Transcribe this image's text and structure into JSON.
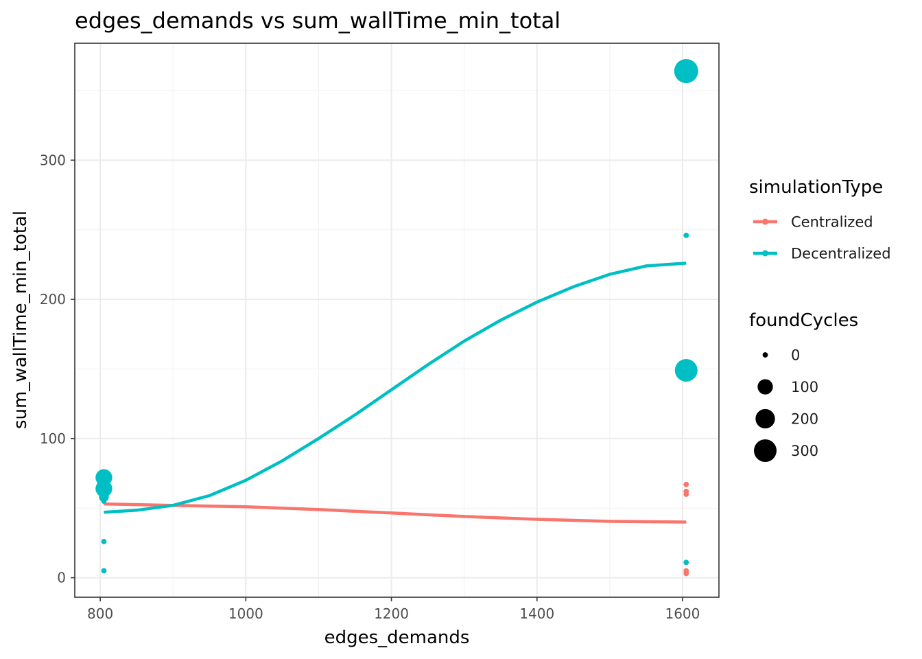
{
  "chart_data": {
    "type": "scatter",
    "title": "edges_demands  vs  sum_wallTime_min_total",
    "xlabel": "edges_demands",
    "ylabel": "sum_wallTime_min_total",
    "xlim": [
      765,
      1650
    ],
    "ylim": [
      -14,
      384
    ],
    "xticks": [
      800,
      1000,
      1200,
      1400,
      1600
    ],
    "xtick_labels": [
      "800",
      "1000",
      "1200",
      "1400",
      "1600"
    ],
    "yticks": [
      0,
      100,
      200,
      300
    ],
    "ytick_labels": [
      "0",
      "100",
      "200",
      "300"
    ],
    "grid": true,
    "legend_placement": "right",
    "series": [
      {
        "name": "Centralized",
        "color": "#F8766D",
        "points": [
          {
            "x": 805,
            "y": 60,
            "size": 0
          },
          {
            "x": 1605,
            "y": 67,
            "size": 0
          },
          {
            "x": 1605,
            "y": 62,
            "size": 0
          },
          {
            "x": 1605,
            "y": 60,
            "size": 0
          },
          {
            "x": 1605,
            "y": 5,
            "size": 0
          },
          {
            "x": 1605,
            "y": 3,
            "size": 0
          }
        ],
        "smooth": [
          {
            "x": 805,
            "y": 53
          },
          {
            "x": 900,
            "y": 52
          },
          {
            "x": 1000,
            "y": 51
          },
          {
            "x": 1100,
            "y": 49
          },
          {
            "x": 1200,
            "y": 46.5
          },
          {
            "x": 1300,
            "y": 44
          },
          {
            "x": 1400,
            "y": 42
          },
          {
            "x": 1500,
            "y": 40.5
          },
          {
            "x": 1605,
            "y": 40
          }
        ]
      },
      {
        "name": "Decentralized",
        "color": "#00BFC4",
        "points": [
          {
            "x": 805,
            "y": 72,
            "size": 130
          },
          {
            "x": 805,
            "y": 64,
            "size": 130
          },
          {
            "x": 805,
            "y": 58,
            "size": 20
          },
          {
            "x": 805,
            "y": 55,
            "size": 0
          },
          {
            "x": 805,
            "y": 26,
            "size": 0
          },
          {
            "x": 805,
            "y": 5,
            "size": 0
          },
          {
            "x": 1605,
            "y": 364,
            "size": 350
          },
          {
            "x": 1605,
            "y": 246,
            "size": 0
          },
          {
            "x": 1605,
            "y": 149,
            "size": 300
          },
          {
            "x": 1605,
            "y": 11,
            "size": 0
          }
        ],
        "smooth": [
          {
            "x": 805,
            "y": 47
          },
          {
            "x": 850,
            "y": 48.5
          },
          {
            "x": 900,
            "y": 52
          },
          {
            "x": 950,
            "y": 59
          },
          {
            "x": 1000,
            "y": 70
          },
          {
            "x": 1050,
            "y": 84
          },
          {
            "x": 1100,
            "y": 100
          },
          {
            "x": 1150,
            "y": 117
          },
          {
            "x": 1200,
            "y": 135
          },
          {
            "x": 1250,
            "y": 153
          },
          {
            "x": 1300,
            "y": 170
          },
          {
            "x": 1350,
            "y": 185
          },
          {
            "x": 1400,
            "y": 198
          },
          {
            "x": 1450,
            "y": 209
          },
          {
            "x": 1500,
            "y": 218
          },
          {
            "x": 1550,
            "y": 224
          },
          {
            "x": 1605,
            "y": 226
          }
        ]
      }
    ],
    "legend": {
      "color_title": "simulationType",
      "color_entries": [
        "Centralized",
        "Decentralized"
      ],
      "size_title": "foundCycles",
      "size_entries": [
        {
          "label": "0",
          "value": 0
        },
        {
          "label": "100",
          "value": 100
        },
        {
          "label": "200",
          "value": 200
        },
        {
          "label": "300",
          "value": 300
        }
      ]
    }
  }
}
